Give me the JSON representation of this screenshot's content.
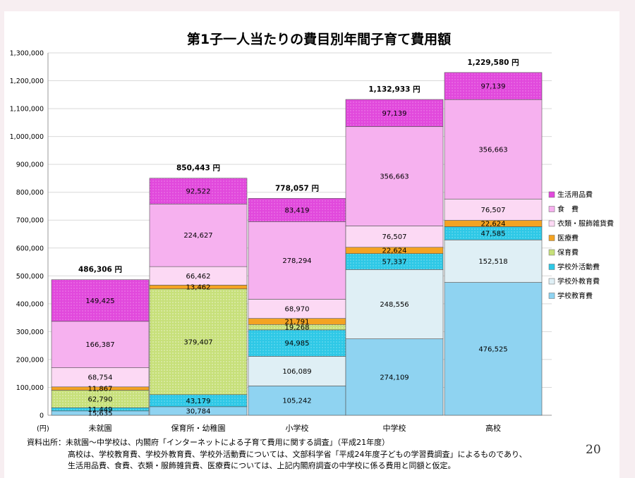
{
  "chart_data": {
    "type": "bar",
    "stacked": true,
    "title": "第1子一人当たりの費目別年間子育て費用額",
    "unit_label": "(円)",
    "ylim": [
      0,
      1300000
    ],
    "y_ticks": [
      0,
      100000,
      200000,
      300000,
      400000,
      500000,
      600000,
      700000,
      800000,
      900000,
      1000000,
      1100000,
      1200000,
      1300000
    ],
    "y_tick_labels": [
      "0",
      "100,000",
      "200,000",
      "300,000",
      "400,000",
      "500,000",
      "600,000",
      "700,000",
      "800,000",
      "900,000",
      "1,000,000",
      "1,100,000",
      "1,200,000",
      "1,300,000"
    ],
    "grid": true,
    "legend_position": "right",
    "categories": [
      "未就園",
      "保育所・幼稚園",
      "小学校",
      "中学校",
      "高校"
    ],
    "totals": [
      486306,
      850443,
      778057,
      1132933,
      1229580
    ],
    "total_labels": [
      "486,306 円",
      "850,443 円",
      "778,057 円",
      "1,132,933 円",
      "1,229,580 円"
    ],
    "series": [
      {
        "name": "学校教育費",
        "color": "#8fd3f1",
        "values": [
          15635,
          30784,
          105242,
          274109,
          476525
        ],
        "labels": [
          "15,635",
          "30,784",
          "105,242",
          "274,109",
          "476,525"
        ]
      },
      {
        "name": "学校外教育費",
        "color": "#dfeff5",
        "values": [
          0,
          0,
          106089,
          248556,
          152518
        ],
        "labels": [
          "",
          "",
          "106,089",
          "248,556",
          "152,518"
        ]
      },
      {
        "name": "学校外活動費",
        "color": "#2ec8e6",
        "values": [
          11449,
          43179,
          94985,
          57337,
          47585
        ],
        "labels": [
          "11,449",
          "43,179",
          "94,985",
          "57,337",
          "47,585"
        ]
      },
      {
        "name": "保育費",
        "color": "#c7e07a",
        "values": [
          62790,
          379407,
          19268,
          0,
          0
        ],
        "labels": [
          "62,790",
          "379,407",
          "19,268",
          "",
          ""
        ]
      },
      {
        "name": "医療費",
        "color": "#f4a322",
        "values": [
          11867,
          13462,
          21791,
          22624,
          22624
        ],
        "labels": [
          "11,867",
          "13,462",
          "21,791",
          "22,624",
          "22,624"
        ]
      },
      {
        "name": "衣類・服飾雑貨費",
        "color": "#fcd9f4",
        "values": [
          68754,
          66462,
          68970,
          76507,
          76507
        ],
        "labels": [
          "68,754",
          "66,462",
          "68,970",
          "76,507",
          "76,507"
        ]
      },
      {
        "name": "食　費",
        "color": "#f6b1ef",
        "values": [
          166387,
          224627,
          278294,
          356663,
          356663
        ],
        "labels": [
          "166,387",
          "224,627",
          "278,294",
          "356,663",
          "356,663"
        ]
      },
      {
        "name": "生活用品費",
        "color": "#e149dc",
        "values": [
          149425,
          92522,
          83419,
          97139,
          97139
        ],
        "labels": [
          "149,425",
          "92,522",
          "83,419",
          "97,139",
          "97,139"
        ]
      }
    ]
  },
  "notes": {
    "line1": "資料出所：未就園～中学校は、内閣府「インターネットによる子育て費用に関する調査」（平成21年度）",
    "line2": "高校は、学校教育費、学校外教育費、学校外活動費については、文部科学省「平成24年度子どもの学習費調査」によるものであり、",
    "line3": "生活用品費、食費、衣類・服飾雑貨費、医療費については、上記内閣府調査の中学校に係る費用と同額と仮定。"
  },
  "page_number": "20"
}
